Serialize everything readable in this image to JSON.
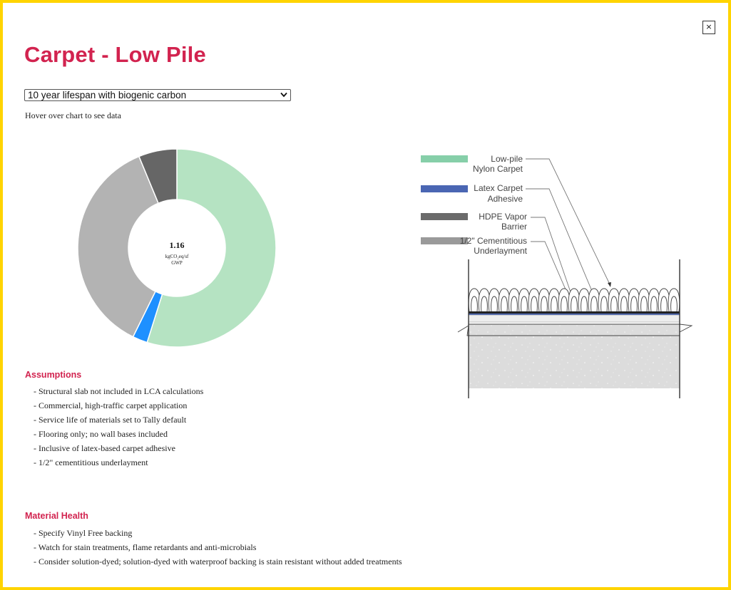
{
  "page": {
    "title": "Carpet - Low Pile",
    "close_label": "×",
    "colors": {
      "frame": "#ffd400",
      "accent": "#d2234f"
    }
  },
  "selector": {
    "selected": "10 year lifespan with biogenic carbon"
  },
  "hint": "Hover over chart to see data",
  "chart_data": {
    "type": "pie",
    "center_value": "1.16",
    "center_unit": "kgCO₂eq/sf",
    "center_label": "GWP",
    "slices": [
      {
        "value": 0.5486,
        "color": "#b5e3c2"
      },
      {
        "value": 0.0243,
        "color": "#1e90ff"
      },
      {
        "value": 0.3647,
        "color": "#b3b3b3"
      },
      {
        "value": 0.0624,
        "color": "#666666"
      }
    ]
  },
  "diagram": {
    "legend": [
      {
        "lines": [
          "Low-pile",
          "Nylon Carpet"
        ],
        "color": "#86cfa9"
      },
      {
        "lines": [
          "Latex Carpet",
          "Adhesive"
        ],
        "color": "#4a66b3"
      },
      {
        "lines": [
          "HDPE Vapor",
          "Barrier"
        ],
        "color": "#6b6b6b"
      },
      {
        "lines": [
          "1/2\" Cementitious",
          "Underlayment"
        ],
        "color": "#9a9a9a"
      }
    ]
  },
  "assumptions": {
    "heading": "Assumptions",
    "items": [
      "- Structural slab not included in LCA calculations",
      "- Commercial, high-traffic carpet application",
      "- Service life of materials set to Tally default",
      "- Flooring only; no wall bases included",
      "- Inclusive of latex-based carpet adhesive",
      "- 1/2\" cementitious underlayment"
    ]
  },
  "material_health": {
    "heading": "Material Health",
    "items": [
      "- Specify Vinyl Free backing",
      "- Watch for stain treatments, flame retardants and anti-microbials",
      "- Consider solution-dyed; solution-dyed with waterproof backing is stain resistant without added treatments"
    ]
  }
}
